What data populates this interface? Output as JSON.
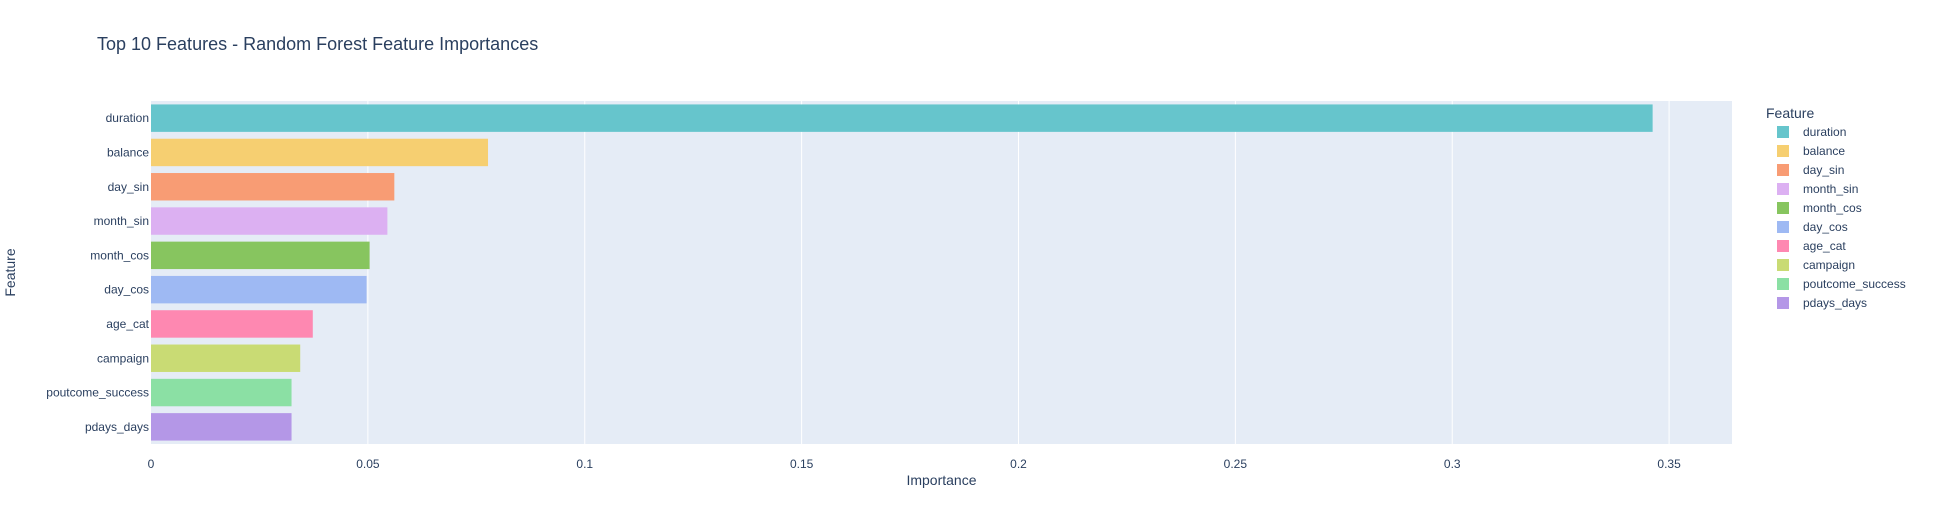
{
  "chart_data": {
    "type": "bar",
    "orientation": "horizontal",
    "title": "Top 10 Features - Random Forest Feature Importances",
    "xlabel": "Importance",
    "ylabel": "Feature",
    "xlim": [
      0,
      0.3645
    ],
    "xticks": [
      0,
      0.05,
      0.1,
      0.15,
      0.2,
      0.25,
      0.3,
      0.35
    ],
    "xtick_labels": [
      "0",
      "0.05",
      "0.1",
      "0.15",
      "0.2",
      "0.25",
      "0.3",
      "0.35"
    ],
    "grid": true,
    "legend_title": "Feature",
    "legend_position": "right",
    "categories": [
      "duration",
      "balance",
      "day_sin",
      "month_sin",
      "month_cos",
      "day_cos",
      "age_cat",
      "campaign",
      "poutcome_success",
      "pdays_days"
    ],
    "values": [
      0.3462,
      0.0777,
      0.0561,
      0.0545,
      0.0504,
      0.0497,
      0.0373,
      0.0344,
      0.0324,
      0.0324
    ],
    "colors": [
      "#66C5CC",
      "#F6CF71",
      "#F89C74",
      "#DCB0F2",
      "#87C55F",
      "#9EB9F3",
      "#FE88B1",
      "#C9DB74",
      "#8BE0A4",
      "#B497E7"
    ]
  },
  "style": {
    "plot_bg": "#E5ECF6",
    "grid_color": "#FFFFFF",
    "text_color": "#2A3F5F"
  }
}
